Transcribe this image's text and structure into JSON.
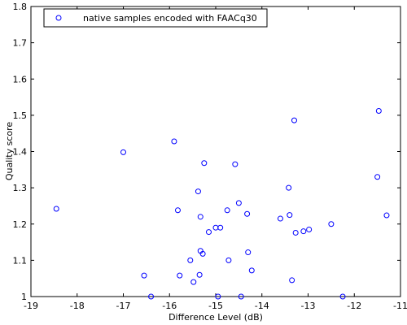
{
  "chart_data": {
    "type": "scatter",
    "xlabel": "Difference Level (dB)",
    "ylabel": "Quality score",
    "xlim": [
      -19,
      -11
    ],
    "ylim": [
      1,
      1.8
    ],
    "xticks": [
      -19,
      -18,
      -17,
      -16,
      -15,
      -14,
      -13,
      -12,
      -11
    ],
    "yticks": [
      1,
      1.1,
      1.2,
      1.3,
      1.4,
      1.5,
      1.6,
      1.7,
      1.8
    ],
    "grid": false,
    "legend_position": "top-left",
    "series": [
      {
        "name": "native samples encoded with FAACq30",
        "color": "#0000ff",
        "marker": "circle-open",
        "points": [
          [
            -18.45,
            1.242
          ],
          [
            -17.0,
            1.398
          ],
          [
            -16.55,
            1.058
          ],
          [
            -16.4,
            1.0
          ],
          [
            -15.9,
            1.428
          ],
          [
            -15.82,
            1.238
          ],
          [
            -15.78,
            1.058
          ],
          [
            -15.55,
            1.1
          ],
          [
            -15.48,
            1.04
          ],
          [
            -15.38,
            1.29
          ],
          [
            -15.35,
            1.06
          ],
          [
            -15.33,
            1.22
          ],
          [
            -15.33,
            1.126
          ],
          [
            -15.28,
            1.118
          ],
          [
            -15.25,
            1.368
          ],
          [
            -15.15,
            1.178
          ],
          [
            -15.0,
            1.19
          ],
          [
            -14.95,
            1.0
          ],
          [
            -14.9,
            1.19
          ],
          [
            -14.75,
            1.238
          ],
          [
            -14.72,
            1.1
          ],
          [
            -14.58,
            1.365
          ],
          [
            -14.5,
            1.258
          ],
          [
            -14.45,
            1.0
          ],
          [
            -14.32,
            1.228
          ],
          [
            -14.3,
            1.122
          ],
          [
            -14.22,
            1.072
          ],
          [
            -13.6,
            1.215
          ],
          [
            -13.42,
            1.3
          ],
          [
            -13.4,
            1.225
          ],
          [
            -13.35,
            1.045
          ],
          [
            -13.3,
            1.486
          ],
          [
            -13.27,
            1.176
          ],
          [
            -13.1,
            1.18
          ],
          [
            -12.98,
            1.185
          ],
          [
            -12.5,
            1.2
          ],
          [
            -12.25,
            1.0
          ],
          [
            -11.5,
            1.33
          ],
          [
            -11.47,
            1.512
          ],
          [
            -11.3,
            1.224
          ]
        ]
      }
    ]
  }
}
